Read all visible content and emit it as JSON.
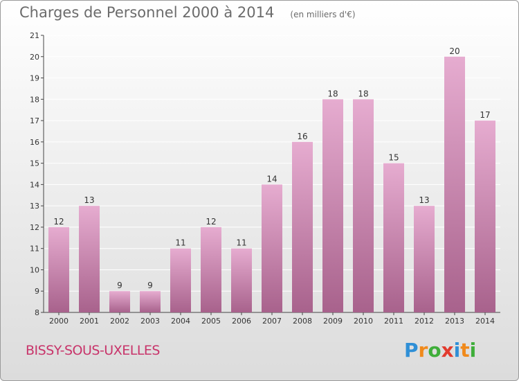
{
  "header": {
    "title": "Charges de Personnel 2000 à 2014",
    "subtitle": "(en milliers d'€)"
  },
  "footer": {
    "commune": "BISSY-SOUS-UXELLES",
    "logo_text": "Proxiti",
    "logo_colors": [
      "#2f8fd6",
      "#f08a1c",
      "#3fae3a",
      "#e23b2e",
      "#2f8fd6",
      "#f08a1c",
      "#3fae3a"
    ]
  },
  "colors": {
    "bar_top": "#e6acd0",
    "bar_bottom": "#a8628c",
    "axis": "#444444",
    "grid": "#ffffff"
  },
  "chart_data": {
    "type": "bar",
    "title": "Charges de Personnel 2000 à 2014",
    "subtitle": "(en milliers d'€)",
    "xlabel": "",
    "ylabel": "",
    "categories": [
      "2000",
      "2001",
      "2002",
      "2003",
      "2004",
      "2005",
      "2006",
      "2007",
      "2008",
      "2009",
      "2010",
      "2011",
      "2012",
      "2013",
      "2014"
    ],
    "values": [
      12,
      13,
      9,
      9,
      11,
      12,
      11,
      14,
      16,
      18,
      18,
      15,
      13,
      20,
      17
    ],
    "ylim": [
      8,
      21
    ],
    "yticks": [
      8,
      9,
      10,
      11,
      12,
      13,
      14,
      15,
      16,
      17,
      18,
      19,
      20,
      21
    ],
    "grid": true,
    "data_labels": true
  }
}
